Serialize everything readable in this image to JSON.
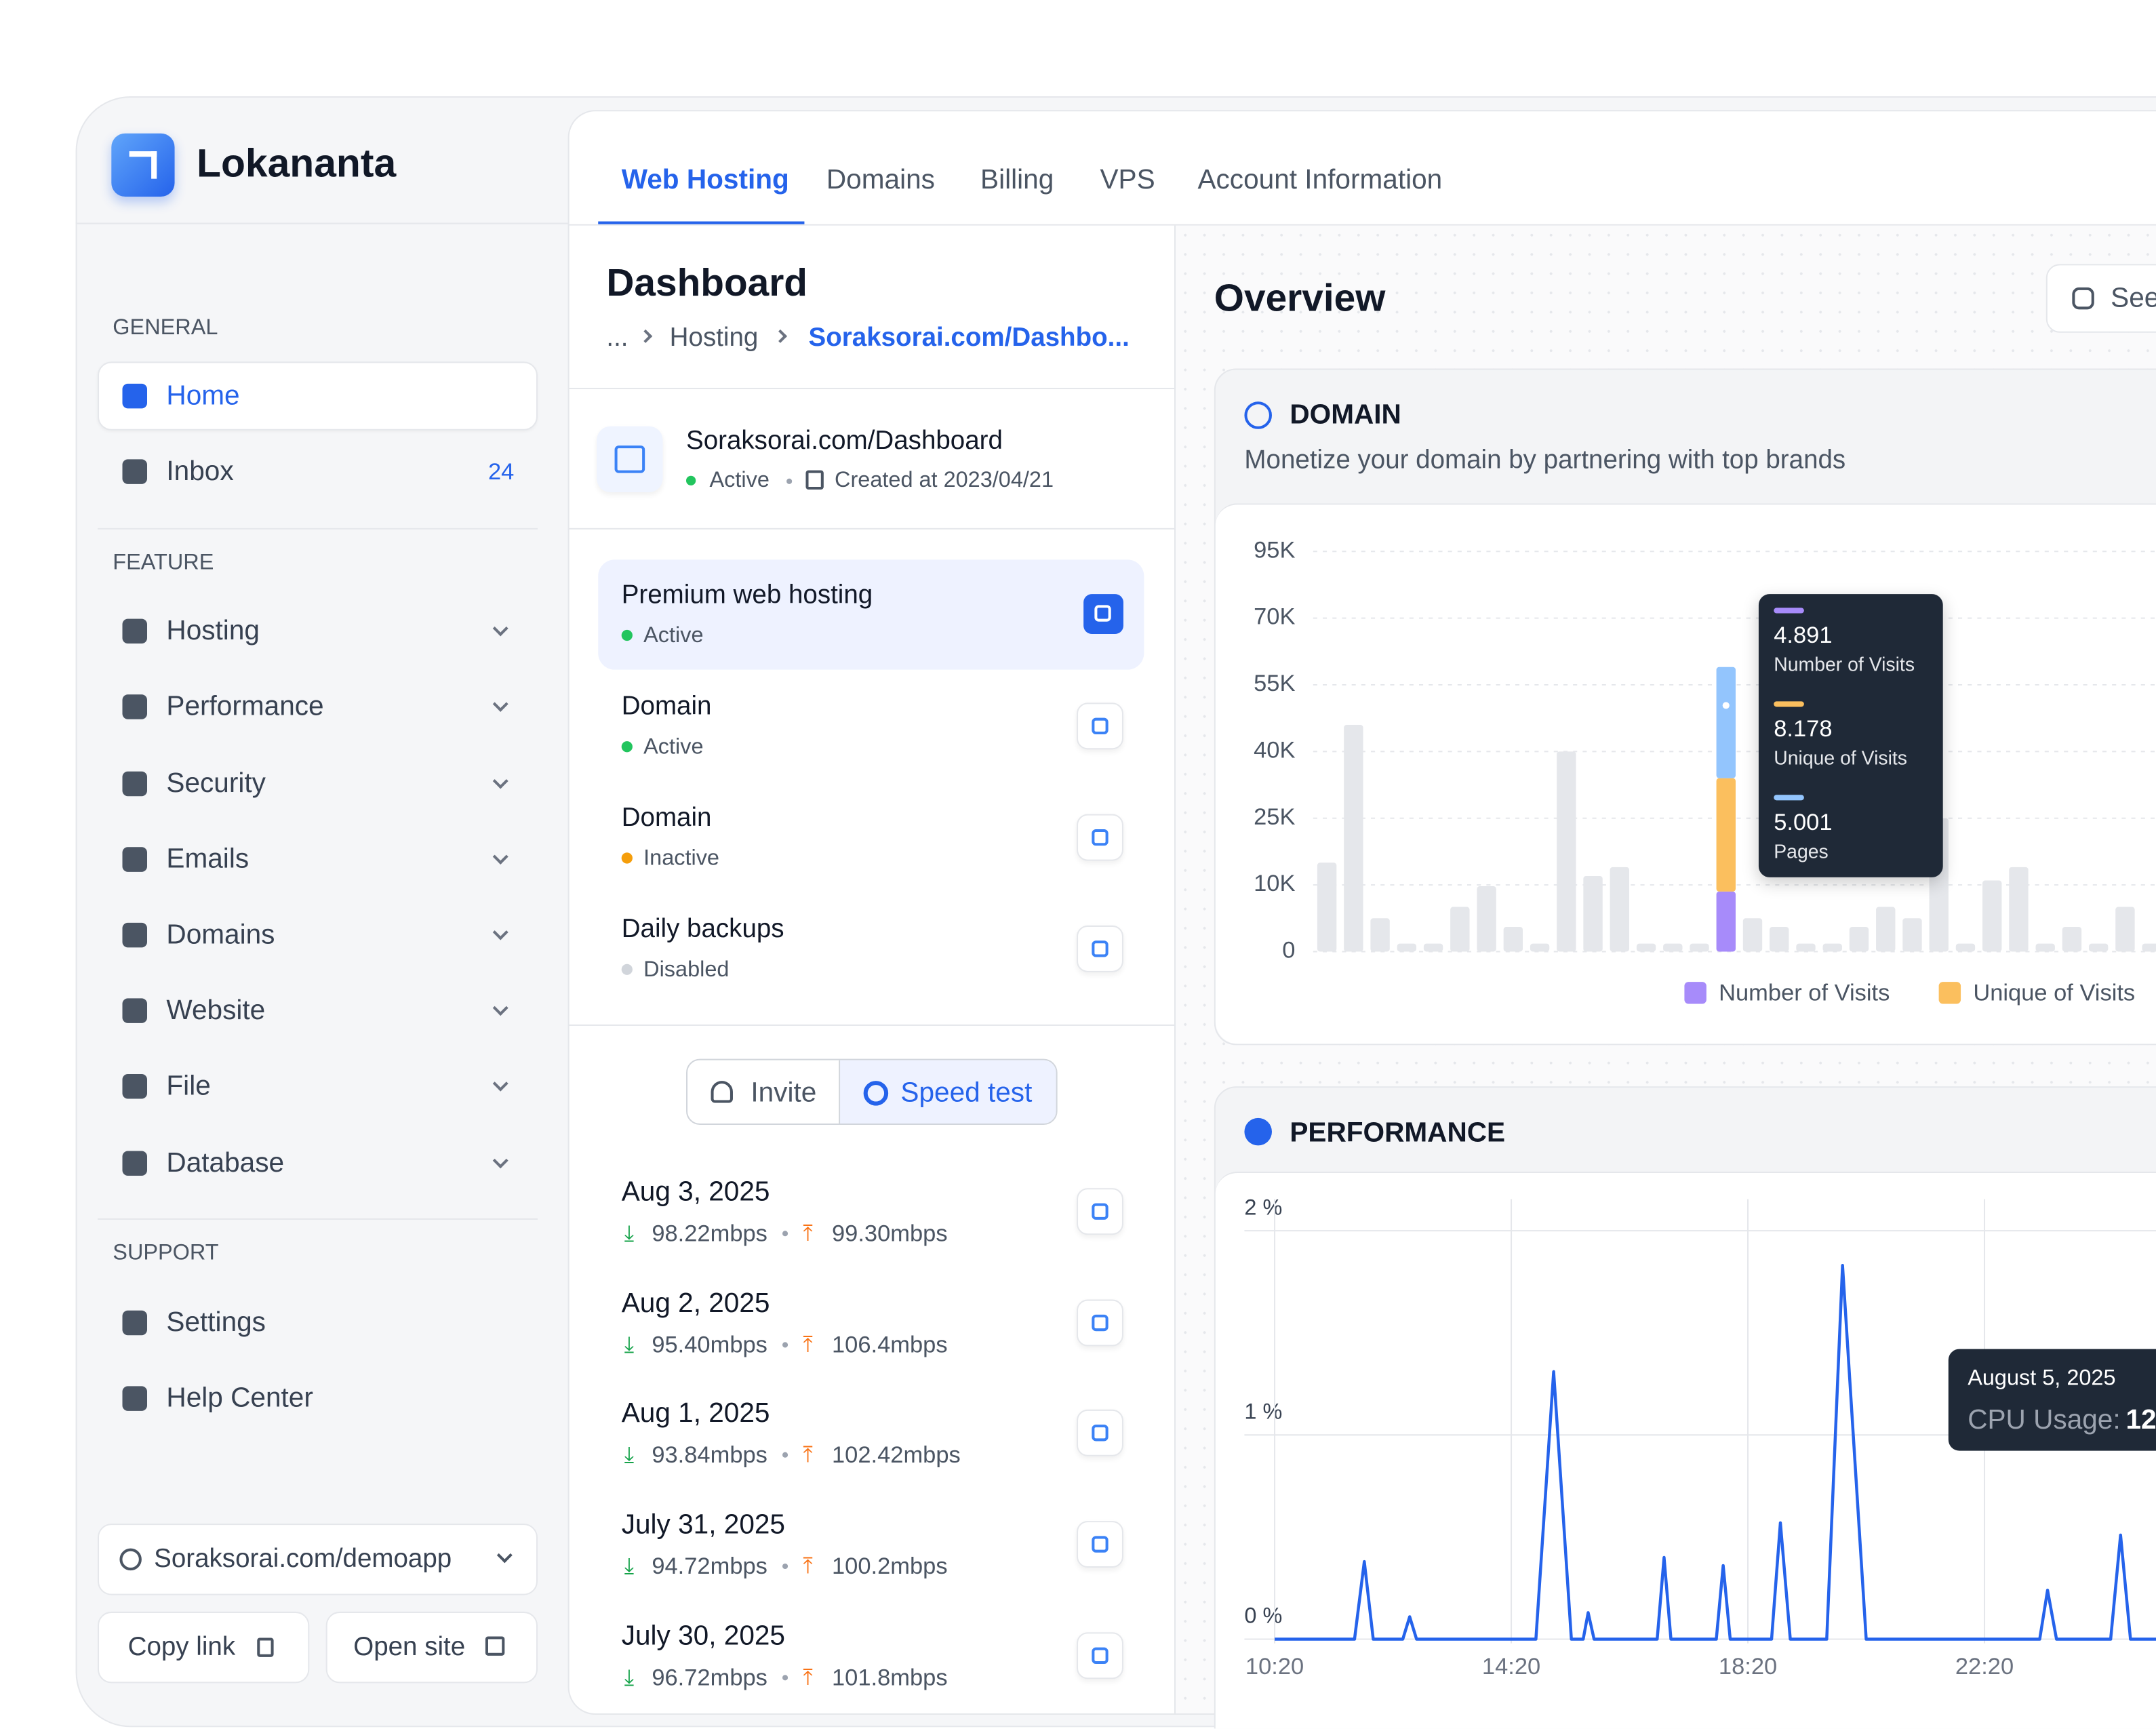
{
  "brand": "Lokananta",
  "sidebar": {
    "sections": [
      {
        "title": "GENERAL",
        "items": [
          {
            "label": "Home",
            "active": true
          },
          {
            "label": "Inbox",
            "badge": 24
          }
        ]
      },
      {
        "title": "FEATURE",
        "items": [
          {
            "label": "Hosting"
          },
          {
            "label": "Performance"
          },
          {
            "label": "Security"
          },
          {
            "label": "Emails"
          },
          {
            "label": "Domains"
          },
          {
            "label": "Website"
          },
          {
            "label": "File"
          },
          {
            "label": "Database"
          }
        ]
      },
      {
        "title": "SUPPORT",
        "items": [
          {
            "label": "Settings"
          },
          {
            "label": "Help Center"
          }
        ]
      }
    ],
    "site_selector": "Soraksorai.com/demoapp",
    "copy_link": "Copy link",
    "open_site": "Open site"
  },
  "tabs": [
    "Web Hosting",
    "Domains",
    "Billing",
    "VPS",
    "Account Information"
  ],
  "dashboard": {
    "title": "Dashboard",
    "breadcrumb": [
      "...",
      "Hosting",
      "Soraksorai.com/Dashbo..."
    ],
    "site": {
      "name": "Soraksorai.com/Dashboard",
      "status": "Active",
      "created": "Created at 2023/04/21"
    },
    "services": [
      {
        "name": "Premium web hosting",
        "status": "Active",
        "status_color": "#22c55e"
      },
      {
        "name": "Domain",
        "status": "Active",
        "status_color": "#22c55e"
      },
      {
        "name": "Domain",
        "status": "Inactive",
        "status_color": "#f59e0b"
      },
      {
        "name": "Daily backups",
        "status": "Disabled",
        "status_color": "#d1d5db"
      }
    ],
    "buttons": [
      "Invite",
      "Speed test"
    ],
    "speed_tests": [
      {
        "date": "Aug 3, 2025",
        "down": "98.22mbps",
        "up": "99.30mbps"
      },
      {
        "date": "Aug 2, 2025",
        "down": "95.40mbps",
        "up": "106.4mbps"
      },
      {
        "date": "Aug 1, 2025",
        "down": "93.84mbps",
        "up": "102.42mbps"
      },
      {
        "date": "July 31, 2025",
        "down": "94.72mbps",
        "up": "100.2mbps"
      },
      {
        "date": "July 30, 2025",
        "down": "96.72mbps",
        "up": "101.8mbps"
      }
    ]
  },
  "overview": {
    "title": "Overview",
    "button": "See",
    "domain": {
      "title": "DOMAIN",
      "subtitle": "Monetize your domain by partnering with top brands",
      "chart": {
        "type": "bar",
        "color": "#e5e7eb",
        "yticks": [
          0,
          {
            "value": 10000,
            "label": "10K"
          },
          {
            "value": 25000,
            "label": "25K"
          },
          {
            "value": 40000,
            "label": "40K"
          },
          {
            "value": 55000,
            "label": "55K"
          },
          {
            "value": 70000,
            "label": "70K"
          },
          {
            "value": 95000,
            "label": "95K"
          }
        ],
        "values": [
          15000,
          46000,
          5000,
          1200,
          1200,
          6700,
          9800,
          3700,
          1200,
          40000,
          12000,
          14000,
          1200,
          1200,
          1200,
          null,
          5000,
          3700,
          1200,
          1200,
          3700,
          6700,
          5000,
          25000,
          1200,
          11000,
          14000,
          1200,
          3700,
          1200,
          6700,
          1200
        ],
        "highlight_index": 15,
        "series": [
          {
            "name": "Number of Visits",
            "color": "#a78bfa",
            "value": 9000,
            "tooltip": 4.891
          },
          {
            "name": "Unique of Visits",
            "color": "#fbbf5e",
            "value": 25000,
            "tooltip": 8.178
          },
          {
            "name": "Pages",
            "color": "#93c5fd",
            "value": 25000,
            "tooltip": 5.001
          }
        ]
      }
    },
    "performance": {
      "title": "PERFORMANCE",
      "chart": {
        "type": "line",
        "color": "#2563eb",
        "xlim": [
          620,
          1514
        ],
        "ylim": [
          0,
          2
        ],
        "xticks": [
          {
            "value": 620,
            "label": "10:20"
          },
          {
            "value": 860,
            "label": "14:20"
          },
          {
            "value": 1100,
            "label": "18:20"
          },
          {
            "value": 1340,
            "label": "22:20"
          }
        ],
        "yticks": [
          {
            "value": 0,
            "label": "0 %"
          },
          {
            "value": 1,
            "label": "1 %"
          },
          {
            "value": 2,
            "label": "2 %"
          }
        ],
        "x": [
          620,
          701,
          711,
          720,
          750,
          757,
          764,
          885,
          903,
          921,
          933,
          938,
          944,
          1008,
          1015,
          1022,
          1068,
          1075,
          1082,
          1124,
          1133,
          1143,
          1180,
          1196,
          1220,
          1396,
          1404,
          1413,
          1468,
          1478,
          1488,
          1514
        ],
        "values": [
          0,
          0,
          0.38,
          0,
          0,
          0.11,
          0,
          0,
          1.31,
          0,
          0,
          0.13,
          0,
          0,
          0.4,
          0,
          0,
          0.36,
          0,
          0,
          0.57,
          0,
          0,
          1.83,
          0,
          0,
          0.24,
          0,
          0,
          0.51,
          0,
          0
        ],
        "tooltip": {
          "date": "August 5, 2025",
          "label": "CPU Usage:",
          "value": "12"
        }
      }
    }
  }
}
